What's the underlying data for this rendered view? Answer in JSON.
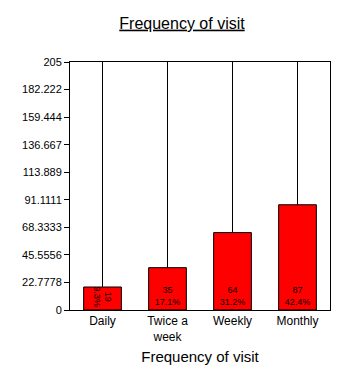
{
  "chart_data": {
    "type": "bar",
    "title": "Frequency of visit",
    "x_label": "Frequency of visit",
    "categories": [
      "Daily",
      "Twice a week",
      "Weekly",
      "Monthly"
    ],
    "values": [
      19,
      35,
      64,
      87
    ],
    "value_labels": [
      "19\n9.3%",
      "35\n17.1%",
      "64\n31.2%",
      "87\n42.4%"
    ],
    "data_labels": true,
    "color": "#ff0000",
    "ylim": [
      0,
      205
    ],
    "yticks": [
      0,
      22.7778,
      45.5556,
      68.3333,
      91.1111,
      113.889,
      136.667,
      159.444,
      182.222,
      205
    ],
    "grid": true
  }
}
